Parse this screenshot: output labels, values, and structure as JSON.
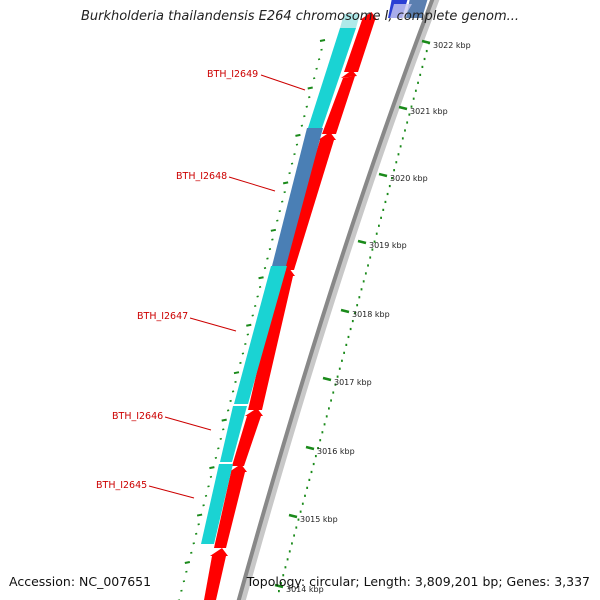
{
  "title": "Burkholderia thailandensis E264 chromosome I, complete genom...",
  "footer": {
    "accession": "Accession: NC_007651",
    "summary": "Topology: circular; Length: 3,809,201 bp; Genes: 3,337"
  },
  "colors": {
    "cds_forward": "#ff0000",
    "gene_cyan": "#1ad3d3",
    "gene_highlight": "#4a7fb5",
    "backbone": "#888888",
    "tick_green": "#1a8a1a",
    "label_red": "#cc0000"
  },
  "genes": [
    {
      "name": "BTH_I2649",
      "highlighted": false
    },
    {
      "name": "BTH_I2648",
      "highlighted": true
    },
    {
      "name": "BTH_I2647",
      "highlighted": false
    },
    {
      "name": "BTH_I2646",
      "highlighted": false
    },
    {
      "name": "BTH_I2645",
      "highlighted": false
    }
  ],
  "ruler": [
    "3022 kbp",
    "3021 kbp",
    "3020 kbp",
    "3019 kbp",
    "3018 kbp",
    "3017 kbp",
    "3016 kbp",
    "3015 kbp",
    "3014 kbp"
  ]
}
